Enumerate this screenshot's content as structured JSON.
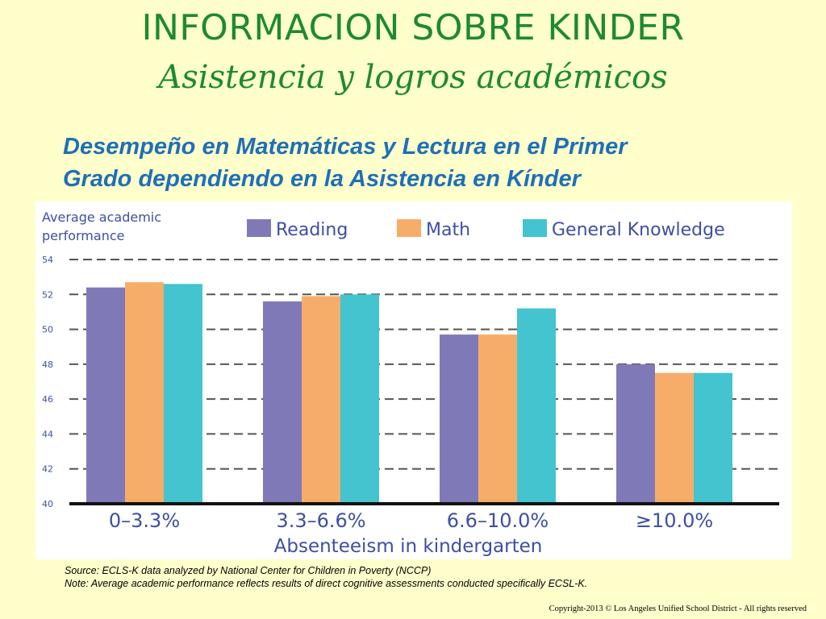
{
  "slide": {
    "title": "INFORMACION SOBRE KINDER",
    "subtitle": "Asistencia y logros académicos",
    "heading_line1": "Desempeño en Matemáticas y Lectura en el Primer",
    "heading_line2": "Grado dependiendo en la Asistencia en Kínder",
    "source_note": "Source: ECLS-K  data analyzed by National Center for Children in Poverty (NCCP)",
    "method_note": "Note: Average academic performance reflects results of direct cognitive assessments conducted specifically  ECSL-K.",
    "copyright": "Copyright-2013 © Los Angeles Unified School District - All rights reserved"
  },
  "chart_data": {
    "type": "bar",
    "ylabel_line1": "Average academic",
    "ylabel_line2": "performance",
    "xlabel": "Absenteeism in kindergarten",
    "categories": [
      "0–3.3%",
      "3.3–6.6%",
      "6.6–10.0%",
      "≥10.0%"
    ],
    "series": [
      {
        "name": "Reading",
        "color": "#8079b8",
        "values": [
          52.4,
          51.6,
          49.7,
          48.0
        ]
      },
      {
        "name": "Math",
        "color": "#f7ad6a",
        "values": [
          52.7,
          51.9,
          49.7,
          47.5
        ]
      },
      {
        "name": "General Knowledge",
        "color": "#44c4cf",
        "values": [
          52.6,
          52.0,
          51.2,
          47.5
        ]
      }
    ],
    "ylim": [
      40,
      54
    ],
    "yticks": [
      40,
      42,
      44,
      46,
      48,
      50,
      52,
      54
    ],
    "grid": true,
    "legend": "top"
  }
}
